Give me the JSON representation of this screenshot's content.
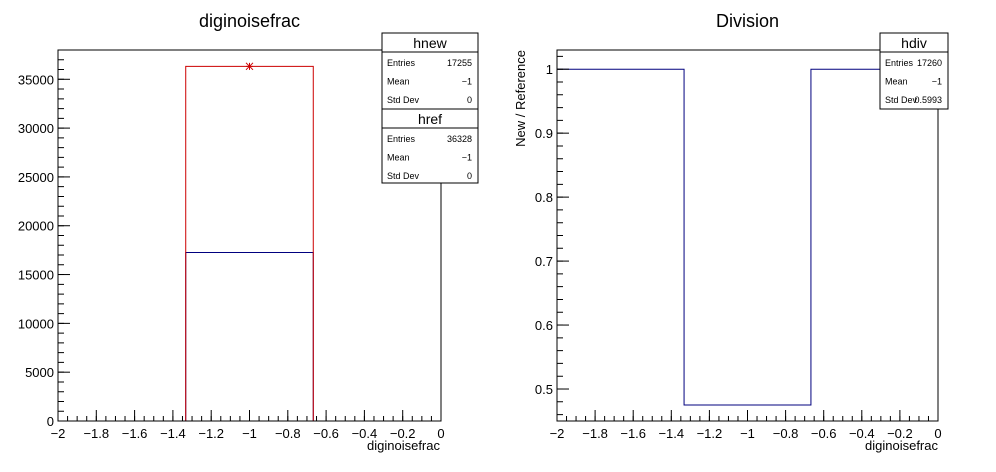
{
  "chart_data": [
    {
      "type": "histogram",
      "title": "diginoisefrac",
      "xlabel": "diginoisefrac",
      "ylabel": "",
      "xlim": [
        -2,
        0
      ],
      "ylim": [
        0,
        38000
      ],
      "x_ticks": [
        -2,
        -1.8,
        -1.6,
        -1.4,
        -1.2,
        -1,
        -0.8,
        -0.6,
        -0.4,
        -0.2,
        0
      ],
      "x_tick_labels": [
        "−2",
        "−1.8",
        "−1.6",
        "−1.4",
        "−1.2",
        "−1",
        "−0.8",
        "−0.6",
        "−0.4",
        "−0.2",
        "0"
      ],
      "y_ticks": [
        0,
        5000,
        10000,
        15000,
        20000,
        25000,
        30000,
        35000
      ],
      "y_tick_labels": [
        "0",
        "5000",
        "10000",
        "15000",
        "20000",
        "25000",
        "30000",
        "35000"
      ],
      "series": [
        {
          "name": "hnew",
          "color": "#00007f",
          "bin_edges": [
            -1.333,
            -0.667
          ],
          "values": [
            17255
          ]
        },
        {
          "name": "href",
          "color": "#cc0000",
          "bin_edges": [
            -1.333,
            -0.667
          ],
          "values": [
            36328
          ],
          "marker_x": -1
        }
      ],
      "stats": [
        {
          "title": "hnew",
          "rows": [
            {
              "label": "Entries",
              "value": "17255"
            },
            {
              "label": "Mean",
              "value": "−1"
            },
            {
              "label": "Std Dev",
              "value": "0"
            }
          ]
        },
        {
          "title": "href",
          "rows": [
            {
              "label": "Entries",
              "value": "36328"
            },
            {
              "label": "Mean",
              "value": "−1"
            },
            {
              "label": "Std Dev",
              "value": "0"
            }
          ]
        }
      ]
    },
    {
      "type": "histogram",
      "title": "Division",
      "xlabel": "diginoisefrac",
      "ylabel": "New / Reference",
      "xlim": [
        -2,
        0
      ],
      "ylim": [
        0.45,
        1.03
      ],
      "x_ticks": [
        -2,
        -1.8,
        -1.6,
        -1.4,
        -1.2,
        -1,
        -0.8,
        -0.6,
        -0.4,
        -0.2,
        0
      ],
      "x_tick_labels": [
        "−2",
        "−1.8",
        "−1.6",
        "−1.4",
        "−1.2",
        "−1",
        "−0.8",
        "−0.6",
        "−0.4",
        "−0.2",
        "0"
      ],
      "y_ticks": [
        0.5,
        0.6,
        0.7,
        0.8,
        0.9,
        1
      ],
      "y_tick_labels": [
        "0.5",
        "0.6",
        "0.7",
        "0.8",
        "0.9",
        "1"
      ],
      "series": [
        {
          "name": "hdiv",
          "color": "#00007f",
          "bin_edges": [
            -2,
            -1.333,
            -0.667,
            0
          ],
          "values": [
            1,
            0.475,
            1
          ]
        }
      ],
      "stats": [
        {
          "title": "hdiv",
          "rows": [
            {
              "label": "Entries",
              "value": "17260"
            },
            {
              "label": "Mean",
              "value": "−1"
            },
            {
              "label": "Std Dev",
              "value": "0.5993"
            }
          ]
        }
      ]
    }
  ]
}
